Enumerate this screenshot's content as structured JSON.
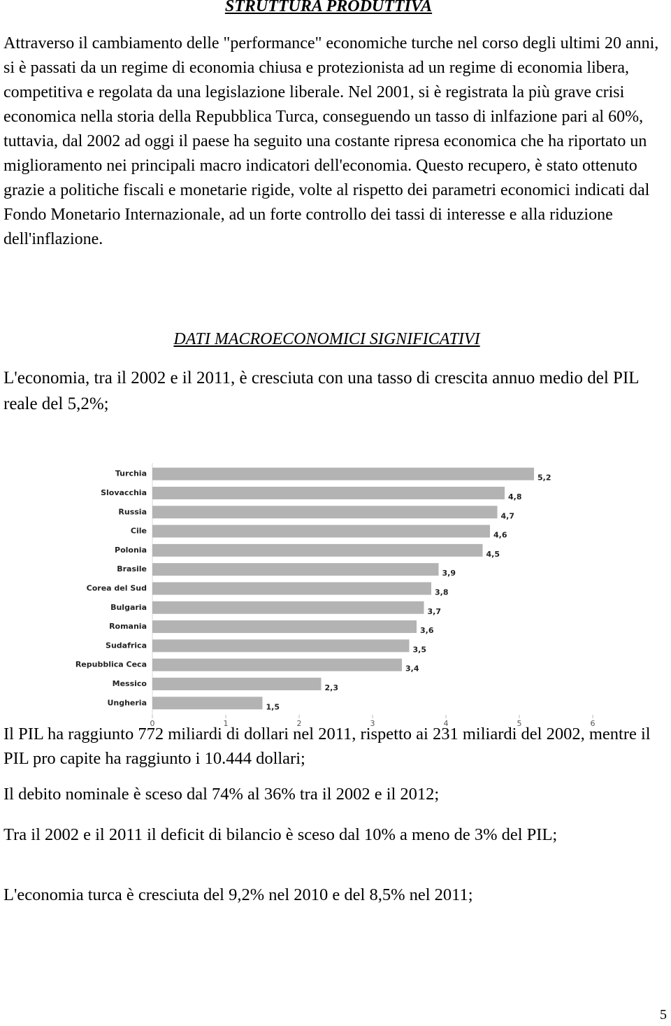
{
  "title": "STRUTTURA PRODUTTIVA",
  "intro": "Attraverso il cambiamento delle \"performance\" economiche turche nel corso degli ultimi 20 anni, si è passati da un regime di economia chiusa e protezionista ad un regime di economia libera, competitiva e regolata da una legislazione liberale. Nel 2001, si è registrata la più grave crisi economica nella storia della Repubblica Turca, conseguendo un tasso di inlfazione pari al 60%, tuttavia, dal 2002 ad oggi il paese ha seguito una costante ripresa economica che ha riportato un miglioramento nei principali macro indicatori dell'economia. Questo recupero, è stato ottenuto grazie a politiche fiscali e monetarie rigide, volte al rispetto dei parametri economici indicati dal Fondo Monetario Internazionale, ad un forte controllo dei tassi di interesse e alla riduzione dell'inflazione.",
  "heading": "DATI MACROECONOMICI SIGNIFICATIVI",
  "growth_text": "L'economia, tra il 2002 e il 2011, è cresciuta con una tasso di crescita annuo medio del PIL reale del 5,2%;",
  "facts": [
    "Il PIL ha raggiunto 772 miliardi di dollari nel 2011, rispetto ai 231 miliardi del 2002, mentre il PIL pro capite ha raggiunto i 10.444 dollari;",
    "Il debito nominale è sceso dal 74% al 36% tra il 2002 e il 2012;",
    "Tra il 2002 e il 2011 il deficit di bilancio è sceso dal 10% a meno de 3% del PIL;",
    "L'economia turca è cresciuta del 9,2% nel 2010 e del 8,5% nel 2011;"
  ],
  "page_number": "5",
  "chart_data": {
    "type": "hbar",
    "categories": [
      "Turchia",
      "Slovacchia",
      "Russia",
      "Cile",
      "Polonia",
      "Brasile",
      "Corea del Sud",
      "Bulgaria",
      "Romania",
      "Sudafrica",
      "Repubblica Ceca",
      "Messico",
      "Ungheria"
    ],
    "values": [
      5.2,
      4.8,
      4.7,
      4.6,
      4.5,
      3.9,
      3.8,
      3.7,
      3.6,
      3.5,
      3.4,
      2.3,
      1.5
    ],
    "value_labels": [
      "5,2",
      "4,8",
      "4,7",
      "4,6",
      "4,5",
      "3,9",
      "3,8",
      "3,7",
      "3,6",
      "3,5",
      "3,4",
      "2,3",
      "1,5"
    ],
    "color": "#b3b3b3",
    "xlim": [
      0,
      6
    ],
    "xticks": [
      0,
      1,
      2,
      3,
      4,
      5,
      6
    ]
  }
}
